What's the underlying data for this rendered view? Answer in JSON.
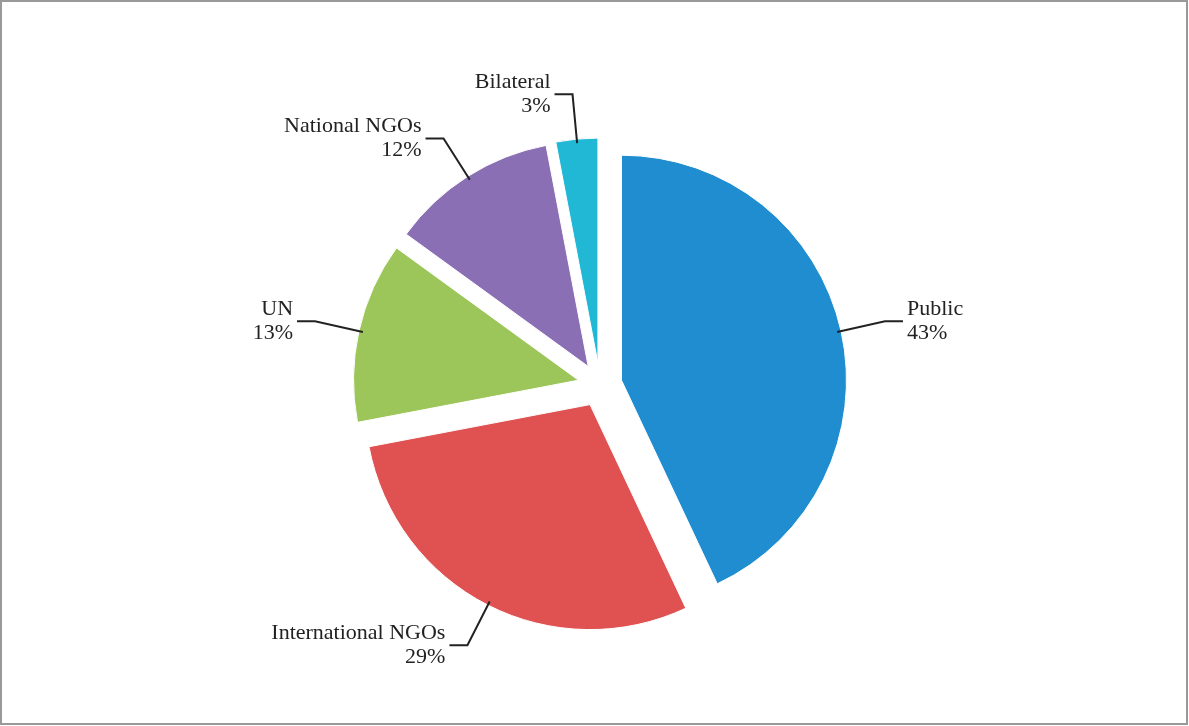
{
  "chart_data": {
    "type": "pie",
    "categories": [
      "Public",
      "International NGOs",
      "UN",
      "National NGOs",
      "Bilateral"
    ],
    "values": [
      43,
      29,
      13,
      12,
      3
    ],
    "colors": [
      "#1f8dd0",
      "#e05252",
      "#9cc65a",
      "#8a6fb4",
      "#20b8d4"
    ],
    "value_labels": [
      "43%",
      "29%",
      "13%",
      "12%",
      "3%"
    ]
  }
}
